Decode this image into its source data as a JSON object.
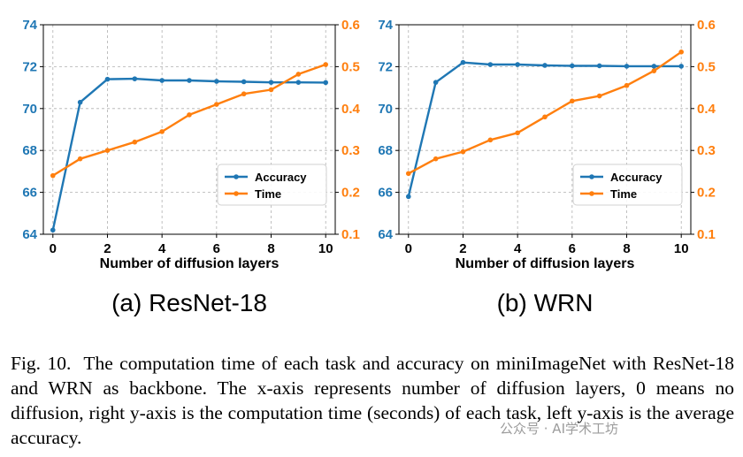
{
  "chart_data": [
    {
      "type": "line",
      "panel_label": "(a) ResNet-18",
      "xlabel": "Number of diffusion layers",
      "x": [
        0,
        1,
        2,
        3,
        4,
        5,
        6,
        7,
        8,
        9,
        10
      ],
      "x_ticks": [
        0,
        2,
        4,
        6,
        8,
        10
      ],
      "xlim": [
        -0.35,
        10.35
      ],
      "y_left": {
        "lim": [
          64,
          74
        ],
        "ticks": [
          64,
          66,
          68,
          70,
          72,
          74
        ]
      },
      "y_right": {
        "lim": [
          0.1,
          0.6
        ],
        "ticks": [
          0.1,
          0.2,
          0.3,
          0.4,
          0.5,
          0.6
        ]
      },
      "grid": true,
      "legend": "center-right",
      "series": [
        {
          "name": "Accuracy",
          "axis": "left",
          "color": "#1f77b4",
          "values": [
            64.2,
            70.3,
            71.4,
            71.42,
            71.34,
            71.34,
            71.3,
            71.28,
            71.25,
            71.25,
            71.24
          ]
        },
        {
          "name": "Time",
          "axis": "right",
          "color": "#ff7f0e",
          "values": [
            0.24,
            0.28,
            0.3,
            0.32,
            0.345,
            0.385,
            0.41,
            0.435,
            0.445,
            0.482,
            0.505
          ]
        }
      ]
    },
    {
      "type": "line",
      "panel_label": "(b) WRN",
      "xlabel": "Number of diffusion layers",
      "x": [
        0,
        1,
        2,
        3,
        4,
        5,
        6,
        7,
        8,
        9,
        10
      ],
      "x_ticks": [
        0,
        2,
        4,
        6,
        8,
        10
      ],
      "xlim": [
        -0.35,
        10.35
      ],
      "y_left": {
        "lim": [
          64,
          74
        ],
        "ticks": [
          64,
          66,
          68,
          70,
          72,
          74
        ]
      },
      "y_right": {
        "lim": [
          0.1,
          0.6
        ],
        "ticks": [
          0.1,
          0.2,
          0.3,
          0.4,
          0.5,
          0.6
        ]
      },
      "grid": true,
      "legend": "center-right",
      "series": [
        {
          "name": "Accuracy",
          "axis": "left",
          "color": "#1f77b4",
          "values": [
            65.8,
            71.25,
            72.2,
            72.1,
            72.1,
            72.06,
            72.04,
            72.04,
            72.02,
            72.02,
            72.02
          ]
        },
        {
          "name": "Time",
          "axis": "right",
          "color": "#ff7f0e",
          "values": [
            0.245,
            0.28,
            0.297,
            0.325,
            0.342,
            0.38,
            0.418,
            0.43,
            0.455,
            0.49,
            0.535
          ]
        }
      ]
    }
  ],
  "caption": {
    "label": "Fig. 10.",
    "text": "The computation time of each task and accuracy on miniImageNet with ResNet-18 and WRN as backbone. The x-axis represents number of diffusion layers, 0 means no diffusion, right y-axis is the computation time (seconds) of each task, left y-axis is the average accuracy."
  },
  "watermark": "公众号 · AI学术工坊"
}
